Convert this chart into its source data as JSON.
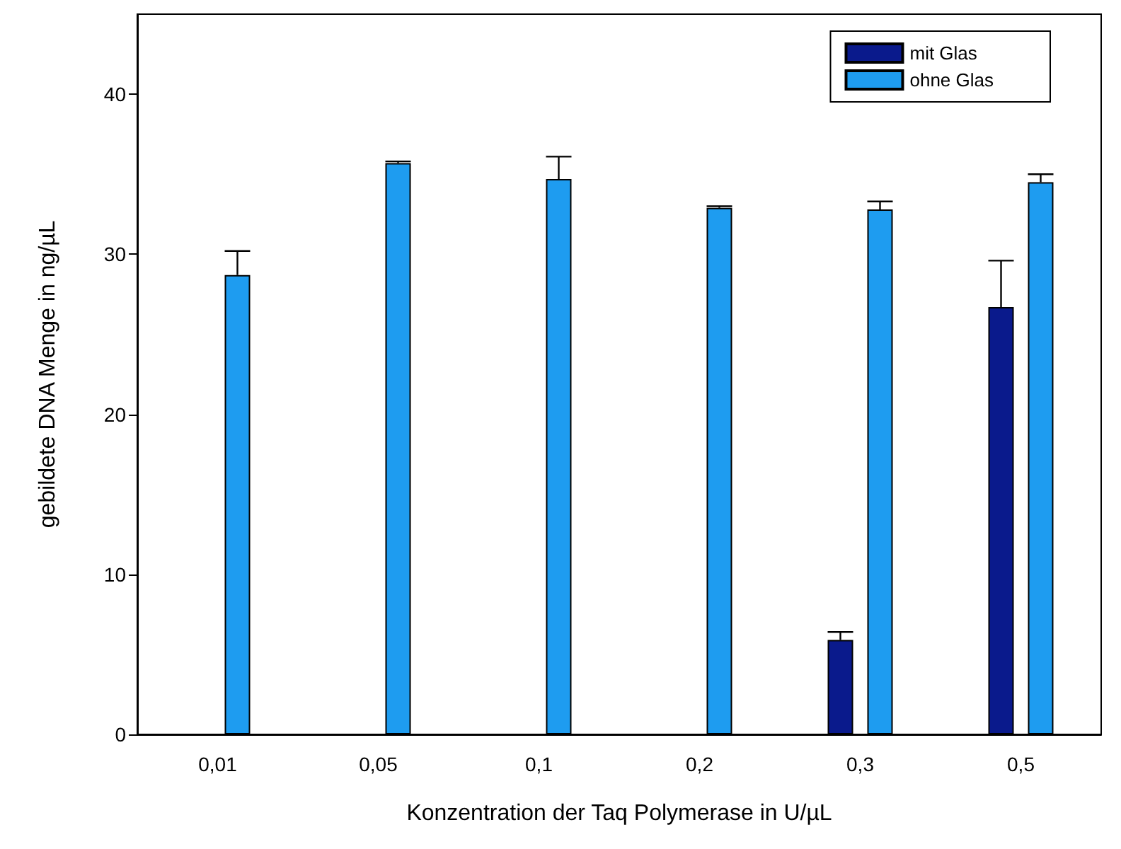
{
  "chart_data": {
    "type": "bar",
    "xlabel": "Konzentration der Taq Polymerase in U/µL",
    "ylabel": "gebildete DNA Menge in ng/µL",
    "categories": [
      "0,01",
      "0,05",
      "0,1",
      "0,2",
      "0,3",
      "0,5"
    ],
    "series": [
      {
        "name": "mit Glas",
        "color": "#0a1a8c",
        "values": [
          null,
          null,
          null,
          null,
          5.9,
          26.7
        ],
        "errors": [
          null,
          null,
          null,
          null,
          [
            5.9,
            6.4
          ],
          [
            26.7,
            29.6
          ]
        ]
      },
      {
        "name": "ohne Glas",
        "color": "#1e9cf0",
        "values": [
          28.7,
          35.7,
          34.7,
          32.9,
          32.8,
          34.5
        ],
        "errors": [
          [
            28.7,
            30.2
          ],
          [
            35.7,
            35.8
          ],
          [
            34.7,
            36.1
          ],
          [
            32.9,
            33.0
          ],
          [
            32.8,
            33.3
          ],
          [
            34.5,
            35.0
          ]
        ]
      }
    ],
    "ylim": [
      0,
      45
    ],
    "yticks": [
      0,
      10,
      20,
      30,
      40
    ],
    "grid": false,
    "legend": "top right"
  }
}
